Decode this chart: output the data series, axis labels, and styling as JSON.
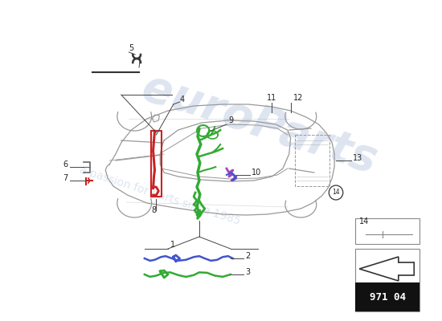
{
  "bg_color": "#ffffff",
  "watermark_color": "#c8d4e8",
  "page_code": "971 04",
  "car_color": "#999999",
  "car_inner_color": "#bbbbbb",
  "wiring_green": "#33aa33",
  "wiring_blue": "#4455cc",
  "wiring_purple": "#aa44bb",
  "wiring_red": "#cc2222",
  "label_color": "#222222",
  "line_color": "#444444",
  "figsize": [
    5.5,
    4.0
  ],
  "dpi": 100
}
